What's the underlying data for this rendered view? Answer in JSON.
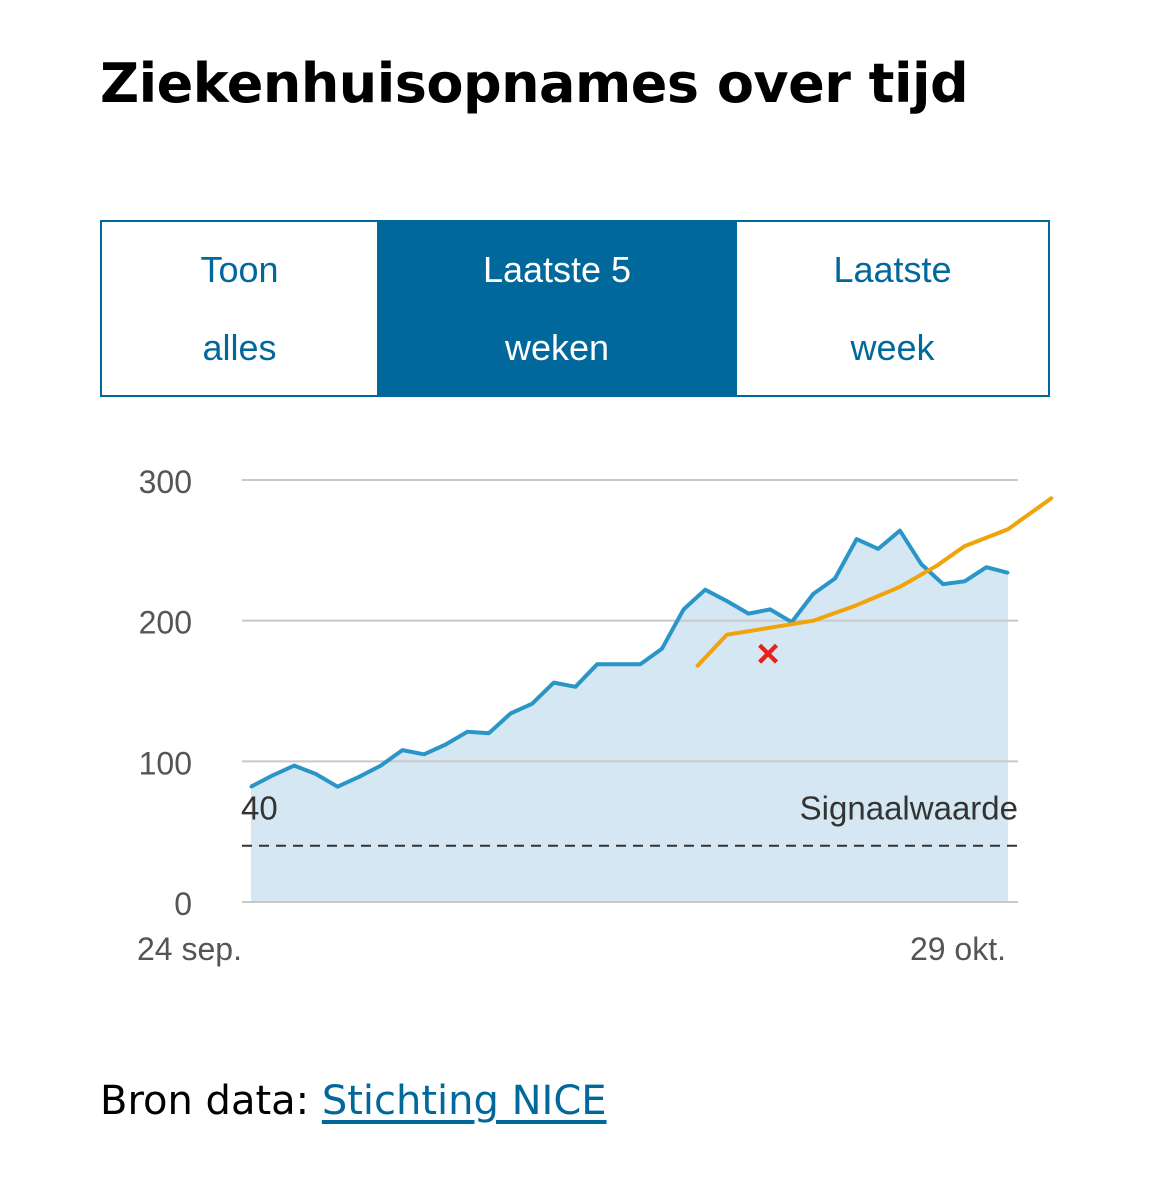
{
  "page": {
    "title": "Ziekenhuisopnames over tijd"
  },
  "tabs": [
    {
      "line1": "Toon",
      "line2": "alles",
      "active": false
    },
    {
      "line1": "Laatste 5",
      "line2": "weken",
      "active": true
    },
    {
      "line1": "Laatste",
      "line2": "week",
      "active": false
    }
  ],
  "source": {
    "label": "Bron data:",
    "link_text": "Stichting NICE"
  },
  "colors": {
    "accent": "#01689b",
    "series_line": "#2a96c8",
    "series_fill": "#d4e7f2",
    "trend_line": "#f0a30a",
    "marker": "#e8201e",
    "grid": "#c8c8c8",
    "threshold": "#333333"
  },
  "chart_data": {
    "type": "area",
    "title": "",
    "xlabel": "",
    "ylabel": "",
    "ylim": [
      0,
      300
    ],
    "yticks": [
      "0",
      "100",
      "200",
      "300"
    ],
    "x_start": "24 sep.",
    "x_end": "29 okt.",
    "grid": true,
    "series": [
      {
        "values": [
          82,
          90,
          97,
          91,
          82,
          89,
          97,
          108,
          105,
          112,
          121,
          120,
          134,
          141,
          156,
          153,
          169,
          169,
          169,
          180,
          208,
          222,
          214,
          205,
          208,
          199,
          219,
          230,
          258,
          251,
          264,
          240,
          226,
          228,
          238,
          234
        ]
      }
    ],
    "trend": {
      "x": [
        20.65,
        22,
        24,
        26,
        28,
        30,
        31.7,
        33,
        35,
        37
      ],
      "values": [
        168,
        190,
        195,
        200,
        211,
        224,
        239,
        253,
        265,
        287
      ]
    },
    "marker": {
      "x": 24,
      "y": 177,
      "symbol": "×"
    },
    "threshold": {
      "value": 40,
      "value_label": "40",
      "label": "Signaalwaarde"
    }
  }
}
